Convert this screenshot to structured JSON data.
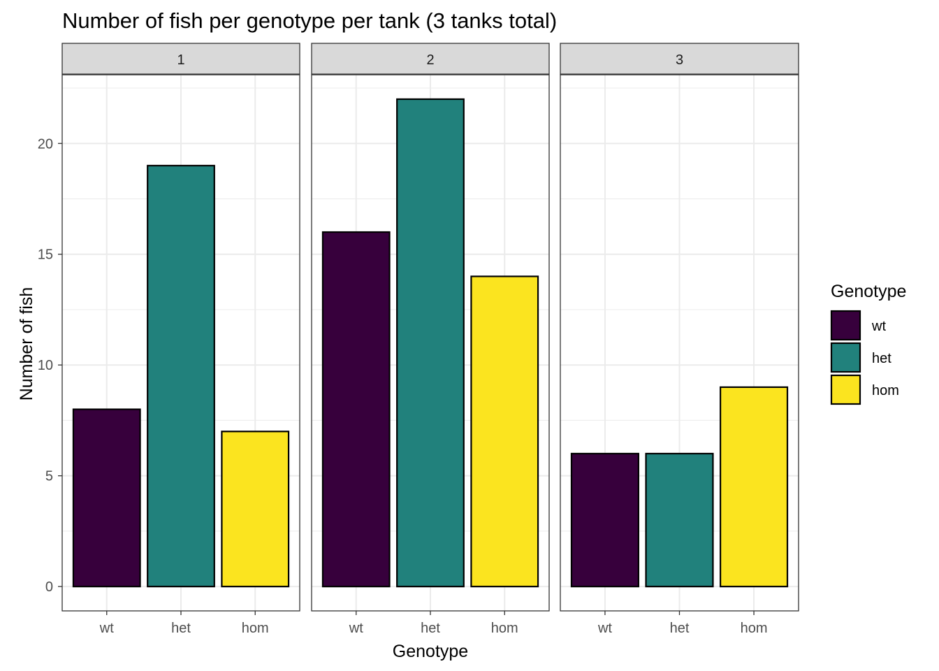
{
  "chart_data": {
    "type": "bar",
    "title": "Number of fish per genotype per tank (3 tanks total)",
    "xlabel": "Genotype",
    "ylabel": "Number of fish",
    "categories": [
      "wt",
      "het",
      "hom"
    ],
    "facets": [
      {
        "label": "1",
        "values": [
          8,
          19,
          7
        ]
      },
      {
        "label": "2",
        "values": [
          16,
          22,
          14
        ]
      },
      {
        "label": "3",
        "values": [
          6,
          6,
          9
        ]
      }
    ],
    "ylim": [
      -1.1,
      23.1
    ],
    "yticks": [
      0,
      5,
      10,
      15,
      20
    ],
    "grid": true,
    "legend": {
      "title": "Genotype",
      "position": "right",
      "entries": [
        "wt",
        "het",
        "hom"
      ]
    },
    "colors": {
      "wt": "#440154",
      "het": "#21908C",
      "hom": "#FDE725"
    },
    "fill_colors": [
      "#37003c",
      "#21817c",
      "#fbe41f"
    ]
  }
}
